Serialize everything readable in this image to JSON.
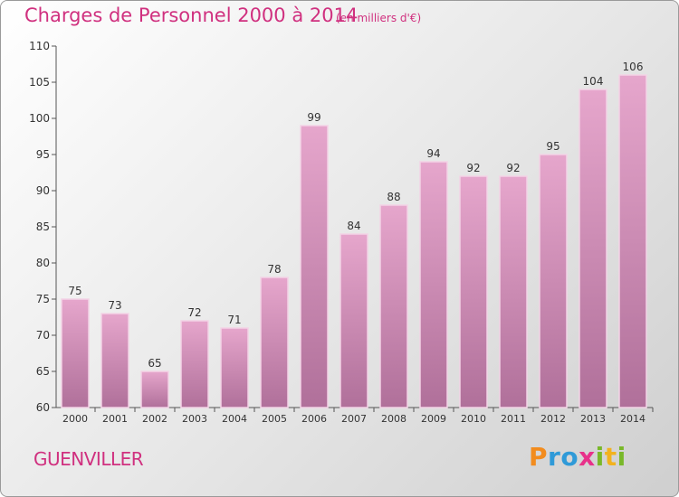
{
  "title": "Charges de Personnel 2000 à 2014",
  "subtitle": "(en milliers d'€)",
  "city": "GUENVILLER",
  "logo": {
    "letters": [
      "P",
      "r",
      "o",
      "x",
      "i",
      "t",
      "i"
    ]
  },
  "colors": {
    "bar_top": "#e6a6cc",
    "bar_bottom": "#b0709a",
    "accent": "#d0307f"
  },
  "chart_data": {
    "type": "bar",
    "title": "Charges de Personnel 2000 à 2014",
    "subtitle": "(en milliers d'€)",
    "categories": [
      "2000",
      "2001",
      "2002",
      "2003",
      "2004",
      "2005",
      "2006",
      "2007",
      "2008",
      "2009",
      "2010",
      "2011",
      "2012",
      "2013",
      "2014"
    ],
    "values": [
      75,
      73,
      65,
      72,
      71,
      78,
      99,
      84,
      88,
      94,
      92,
      92,
      95,
      104,
      106
    ],
    "ylim": [
      60,
      110
    ],
    "yticks": [
      60,
      65,
      70,
      75,
      80,
      85,
      90,
      95,
      100,
      105,
      110
    ],
    "grid": false,
    "legend": "none",
    "xlabel": "",
    "ylabel": ""
  }
}
